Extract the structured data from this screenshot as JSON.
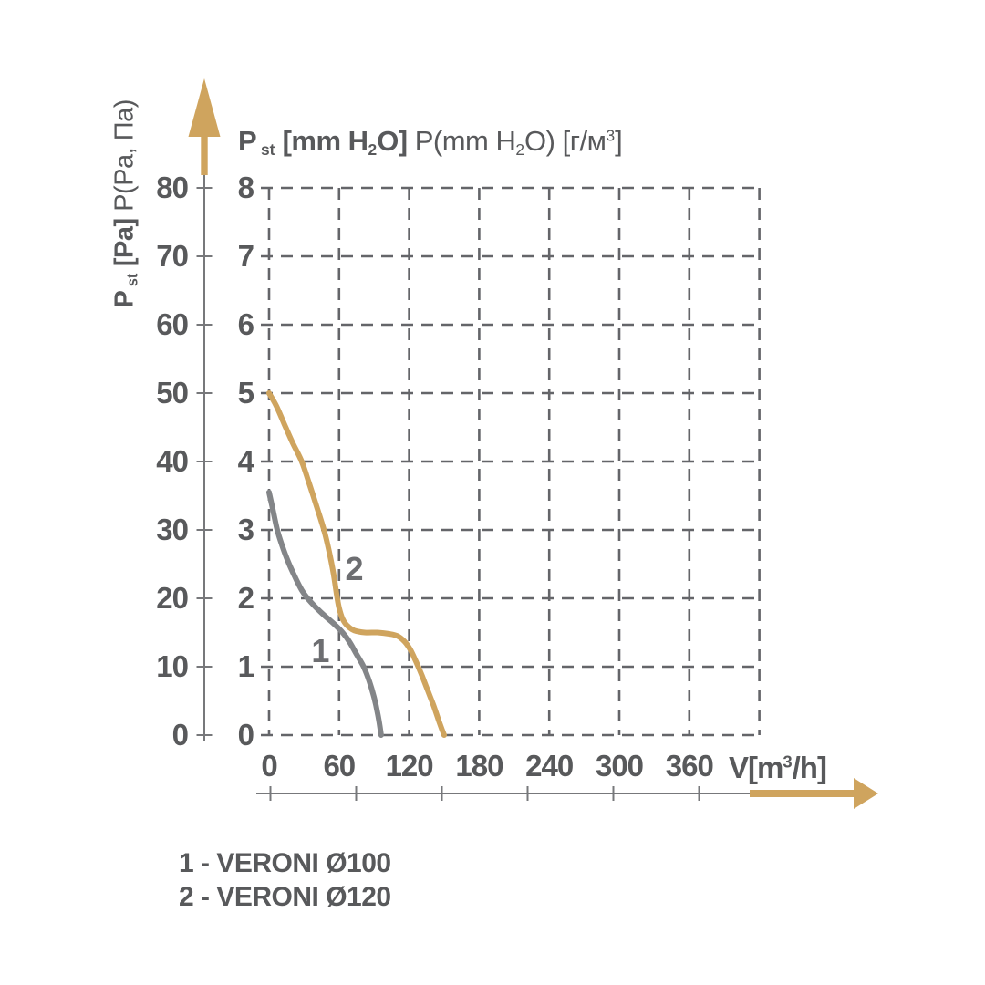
{
  "colors": {
    "background": "#FFFFFF",
    "text": "#58595B",
    "grid": "#646569",
    "axis_line": "#77787B",
    "accent_tan": "#CFA45E",
    "curve1_gray": "#838588"
  },
  "title": {
    "bold_segments": [
      {
        "t": "P"
      },
      {
        "t": " st",
        "sub": true
      },
      {
        "t": " [mm H"
      },
      {
        "t": "2",
        "sub": true
      },
      {
        "t": "O]"
      }
    ],
    "regular_segments": [
      {
        "t": " P(mm H"
      },
      {
        "t": "2",
        "sub": true
      },
      {
        "t": "O) [г/м"
      },
      {
        "t": "3",
        "sup": true
      },
      {
        "t": "]"
      }
    ]
  },
  "y_axis_outer": {
    "bold_segments": [
      {
        "t": "P"
      },
      {
        "t": " st",
        "sub": true
      },
      {
        "t": " [Pa]"
      }
    ],
    "regular_segments": [
      {
        "t": " P(Pa, Па)"
      }
    ],
    "tick_labels": [
      "80",
      "70",
      "60",
      "50",
      "40",
      "30",
      "20",
      "10",
      "0"
    ]
  },
  "y_axis_inner": {
    "tick_labels": [
      "8",
      "7",
      "6",
      "5",
      "4",
      "3",
      "2",
      "1",
      "0"
    ]
  },
  "x_axis": {
    "tick_labels": [
      "0",
      "60",
      "120",
      "180",
      "240",
      "300",
      "360"
    ],
    "unit_segments": [
      {
        "t": "V[m"
      },
      {
        "t": "3",
        "sup": true
      },
      {
        "t": "/h]"
      }
    ]
  },
  "legend": {
    "items": [
      "1 - VERONI Ø100",
      "2 - VERONI Ø120"
    ]
  },
  "chart_data": {
    "type": "line",
    "title": "P st [mm H2O] P(mm H2O) [г/м3]",
    "xlabel": "V[m3/h]",
    "ylabel_outer": "P st [Pa] P(Pa, Па)",
    "ylabel_inner": "P st [mm H2O]",
    "xlim": [
      0,
      420
    ],
    "ylim_mm": [
      0,
      8
    ],
    "ylim_pa": [
      0,
      80
    ],
    "x_ticks": [
      0,
      60,
      120,
      180,
      240,
      300,
      360
    ],
    "grid": "dashed",
    "legend_position": "below",
    "series": [
      {
        "name": "VERONI Ø100",
        "label": "1",
        "color": "#838588",
        "label_at": [
          44,
          1.22
        ],
        "points": [
          [
            0,
            3.55
          ],
          [
            3,
            3.32
          ],
          [
            7,
            3.0
          ],
          [
            11,
            2.78
          ],
          [
            16,
            2.55
          ],
          [
            22,
            2.32
          ],
          [
            28,
            2.12
          ],
          [
            33,
            2.0
          ],
          [
            40,
            1.87
          ],
          [
            48,
            1.74
          ],
          [
            56,
            1.62
          ],
          [
            63,
            1.5
          ],
          [
            69,
            1.36
          ],
          [
            75,
            1.18
          ],
          [
            81,
            1.0
          ],
          [
            86,
            0.78
          ],
          [
            90,
            0.55
          ],
          [
            93,
            0.32
          ],
          [
            95,
            0.12
          ],
          [
            96,
            0
          ]
        ]
      },
      {
        "name": "VERONI Ø120",
        "label": "2",
        "color": "#CFA45E",
        "label_at": [
          73,
          2.42
        ],
        "points": [
          [
            0,
            5.0
          ],
          [
            6,
            4.82
          ],
          [
            13,
            4.55
          ],
          [
            20,
            4.28
          ],
          [
            28,
            4.0
          ],
          [
            34,
            3.7
          ],
          [
            41,
            3.33
          ],
          [
            47,
            3.0
          ],
          [
            51,
            2.72
          ],
          [
            55,
            2.38
          ],
          [
            58,
            2.05
          ],
          [
            60,
            1.86
          ],
          [
            63,
            1.7
          ],
          [
            67,
            1.6
          ],
          [
            73,
            1.53
          ],
          [
            82,
            1.5
          ],
          [
            93,
            1.5
          ],
          [
            103,
            1.48
          ],
          [
            110,
            1.45
          ],
          [
            116,
            1.37
          ],
          [
            121,
            1.25
          ],
          [
            126,
            1.07
          ],
          [
            131,
            0.87
          ],
          [
            136,
            0.65
          ],
          [
            141,
            0.43
          ],
          [
            146,
            0.18
          ],
          [
            150,
            0
          ]
        ]
      }
    ]
  }
}
